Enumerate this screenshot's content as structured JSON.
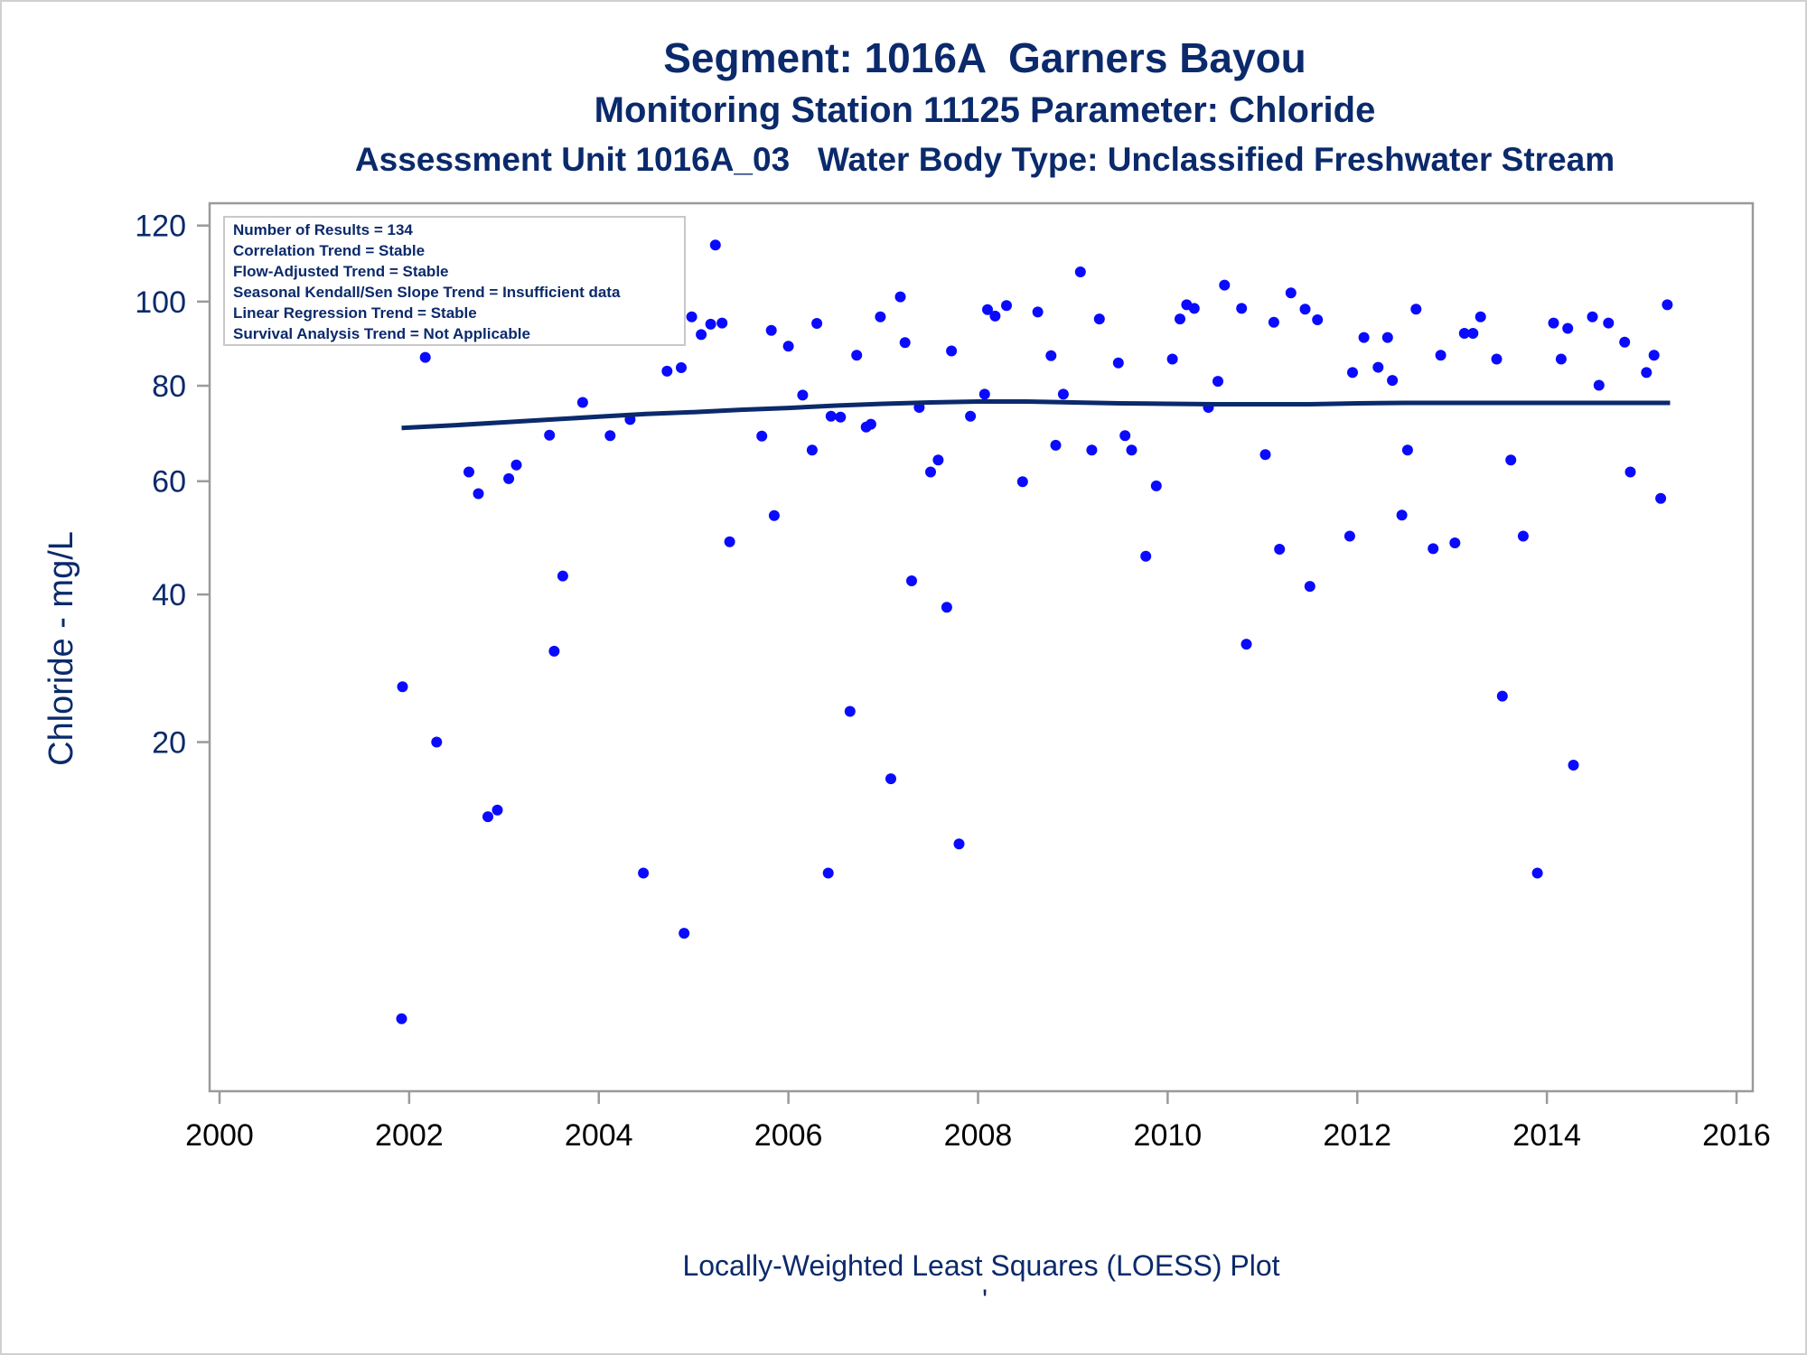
{
  "chart_data": {
    "type": "scatter",
    "title": "Segment: 1016A  Garners Bayou",
    "subtitle": "Monitoring Station 11125 Parameter: Chloride",
    "subtitle2": "Assessment Unit 1016A_03   Water Body Type: Unclassified Freshwater Stream",
    "xlabel": "",
    "ylabel": "Chloride - mg/L",
    "footnote": "Locally-Weighted Least Squares (LOESS) Plot",
    "footnote_mark": "'",
    "y_scale": "sqrt",
    "xlim": [
      2000,
      2016
    ],
    "ylim": [
      0,
      128
    ],
    "x_ticks": [
      "2000",
      "2002",
      "2004",
      "2006",
      "2008",
      "2010",
      "2012",
      "2014",
      "2016"
    ],
    "y_ticks": [
      "20",
      "40",
      "60",
      "80",
      "100",
      "120"
    ],
    "legend_placement": "top-left",
    "legend": [
      "Number of Results = 134",
      "Correlation Trend = Stable",
      "Flow-Adjusted Trend = Stable",
      "Seasonal Kendall/Sen Slope Trend = Insufficient data",
      "Linear Regression Trend = Stable",
      "Survival Analysis Trend = Not Applicable"
    ],
    "colors": {
      "points": "#0a0aff",
      "loess": "#0b2a6b",
      "text": "#0b2a6b"
    },
    "points": [
      [
        2001.92,
        1.0
      ],
      [
        2001.93,
        26.7
      ],
      [
        2002.08,
        96.5
      ],
      [
        2002.17,
        86.5
      ],
      [
        2002.25,
        91.2
      ],
      [
        2002.29,
        20.0
      ],
      [
        2002.42,
        105.6
      ],
      [
        2002.46,
        96.0
      ],
      [
        2002.55,
        98.6
      ],
      [
        2002.63,
        61.8
      ],
      [
        2002.73,
        57.6
      ],
      [
        2002.83,
        12.5
      ],
      [
        2002.87,
        99.9
      ],
      [
        2002.93,
        13.1
      ],
      [
        2003.05,
        60.5
      ],
      [
        2003.13,
        63.2
      ],
      [
        2003.3,
        113.6
      ],
      [
        2003.38,
        109.4
      ],
      [
        2003.48,
        69.3
      ],
      [
        2003.53,
        31.5
      ],
      [
        2003.62,
        43.0
      ],
      [
        2003.7,
        97.4
      ],
      [
        2003.83,
        76.3
      ],
      [
        2003.88,
        107.9
      ],
      [
        2003.97,
        97.3
      ],
      [
        2004.05,
        103.2
      ],
      [
        2004.12,
        69.2
      ],
      [
        2004.2,
        106.2
      ],
      [
        2004.33,
        72.6
      ],
      [
        2004.42,
        96.2
      ],
      [
        2004.47,
        8.0
      ],
      [
        2004.58,
        111.8
      ],
      [
        2004.67,
        110.7
      ],
      [
        2004.72,
        83.3
      ],
      [
        2004.87,
        84.1
      ],
      [
        2004.9,
        4.3
      ],
      [
        2004.98,
        96.2
      ],
      [
        2005.08,
        91.9
      ],
      [
        2005.18,
        94.4
      ],
      [
        2005.23,
        114.7
      ],
      [
        2005.3,
        94.7
      ],
      [
        2005.38,
        48.8
      ],
      [
        2005.72,
        69.1
      ],
      [
        2005.82,
        92.9
      ],
      [
        2005.85,
        53.5
      ],
      [
        2006.0,
        89.1
      ],
      [
        2006.15,
        77.9
      ],
      [
        2006.25,
        66.2
      ],
      [
        2006.3,
        94.6
      ],
      [
        2006.42,
        8.0
      ],
      [
        2006.45,
        73.3
      ],
      [
        2006.55,
        73.1
      ],
      [
        2006.65,
        23.6
      ],
      [
        2006.72,
        87.0
      ],
      [
        2006.82,
        71.0
      ],
      [
        2006.87,
        71.6
      ],
      [
        2006.97,
        96.2
      ],
      [
        2007.08,
        16.1
      ],
      [
        2007.18,
        101.2
      ],
      [
        2007.23,
        90.0
      ],
      [
        2007.3,
        42.2
      ],
      [
        2007.38,
        75.2
      ],
      [
        2007.5,
        61.8
      ],
      [
        2007.58,
        64.2
      ],
      [
        2007.67,
        38.0
      ],
      [
        2007.72,
        88.0
      ],
      [
        2007.8,
        10.2
      ],
      [
        2007.92,
        73.3
      ],
      [
        2008.07,
        78.1
      ],
      [
        2008.1,
        98.0
      ],
      [
        2008.18,
        96.4
      ],
      [
        2008.3,
        99.0
      ],
      [
        2008.47,
        59.9
      ],
      [
        2008.63,
        97.4
      ],
      [
        2008.77,
        86.9
      ],
      [
        2008.82,
        67.2
      ],
      [
        2008.9,
        78.1
      ],
      [
        2009.08,
        107.6
      ],
      [
        2009.2,
        66.2
      ],
      [
        2009.28,
        95.7
      ],
      [
        2009.48,
        85.2
      ],
      [
        2009.55,
        69.2
      ],
      [
        2009.62,
        66.2
      ],
      [
        2009.77,
        46.3
      ],
      [
        2009.88,
        59.1
      ],
      [
        2010.05,
        86.1
      ],
      [
        2010.13,
        95.7
      ],
      [
        2010.2,
        99.2
      ],
      [
        2010.28,
        98.3
      ],
      [
        2010.43,
        75.2
      ],
      [
        2010.53,
        81.0
      ],
      [
        2010.6,
        104.2
      ],
      [
        2010.78,
        98.3
      ],
      [
        2010.83,
        32.5
      ],
      [
        2011.03,
        65.3
      ],
      [
        2011.12,
        94.9
      ],
      [
        2011.18,
        47.5
      ],
      [
        2011.3,
        102.2
      ],
      [
        2011.45,
        98.1
      ],
      [
        2011.5,
        41.3
      ],
      [
        2011.58,
        95.5
      ],
      [
        2011.92,
        49.8
      ],
      [
        2011.95,
        83.0
      ],
      [
        2012.07,
        91.2
      ],
      [
        2012.22,
        84.2
      ],
      [
        2012.32,
        91.2
      ],
      [
        2012.37,
        81.2
      ],
      [
        2012.47,
        53.6
      ],
      [
        2012.53,
        66.2
      ],
      [
        2012.62,
        98.1
      ],
      [
        2012.8,
        47.6
      ],
      [
        2012.88,
        87.0
      ],
      [
        2013.03,
        48.6
      ],
      [
        2013.13,
        92.2
      ],
      [
        2013.22,
        92.2
      ],
      [
        2013.3,
        96.2
      ],
      [
        2013.47,
        86.1
      ],
      [
        2013.53,
        25.5
      ],
      [
        2013.62,
        64.2
      ],
      [
        2013.75,
        49.8
      ],
      [
        2013.9,
        8.0
      ],
      [
        2014.07,
        94.7
      ],
      [
        2014.15,
        86.1
      ],
      [
        2014.22,
        93.4
      ],
      [
        2014.28,
        17.5
      ],
      [
        2014.48,
        96.2
      ],
      [
        2014.55,
        80.1
      ],
      [
        2014.65,
        94.7
      ],
      [
        2014.82,
        90.1
      ],
      [
        2014.88,
        61.8
      ],
      [
        2015.05,
        83.0
      ],
      [
        2015.13,
        87.0
      ],
      [
        2015.2,
        56.7
      ],
      [
        2015.27,
        99.2
      ]
    ],
    "loess": [
      [
        2001.92,
        70.8
      ],
      [
        2002.5,
        71.4
      ],
      [
        2003.0,
        72.0
      ],
      [
        2003.5,
        72.6
      ],
      [
        2004.0,
        73.2
      ],
      [
        2004.5,
        73.8
      ],
      [
        2005.0,
        74.2
      ],
      [
        2005.5,
        74.7
      ],
      [
        2006.0,
        75.1
      ],
      [
        2006.5,
        75.6
      ],
      [
        2007.0,
        76.0
      ],
      [
        2007.5,
        76.3
      ],
      [
        2008.0,
        76.5
      ],
      [
        2008.5,
        76.5
      ],
      [
        2009.0,
        76.3
      ],
      [
        2009.5,
        76.1
      ],
      [
        2010.0,
        76.0
      ],
      [
        2010.5,
        75.9
      ],
      [
        2011.0,
        75.9
      ],
      [
        2011.5,
        75.9
      ],
      [
        2012.0,
        76.1
      ],
      [
        2012.5,
        76.2
      ],
      [
        2013.0,
        76.2
      ],
      [
        2013.5,
        76.2
      ],
      [
        2014.0,
        76.2
      ],
      [
        2014.5,
        76.2
      ],
      [
        2015.0,
        76.2
      ],
      [
        2015.3,
        76.2
      ]
    ]
  }
}
